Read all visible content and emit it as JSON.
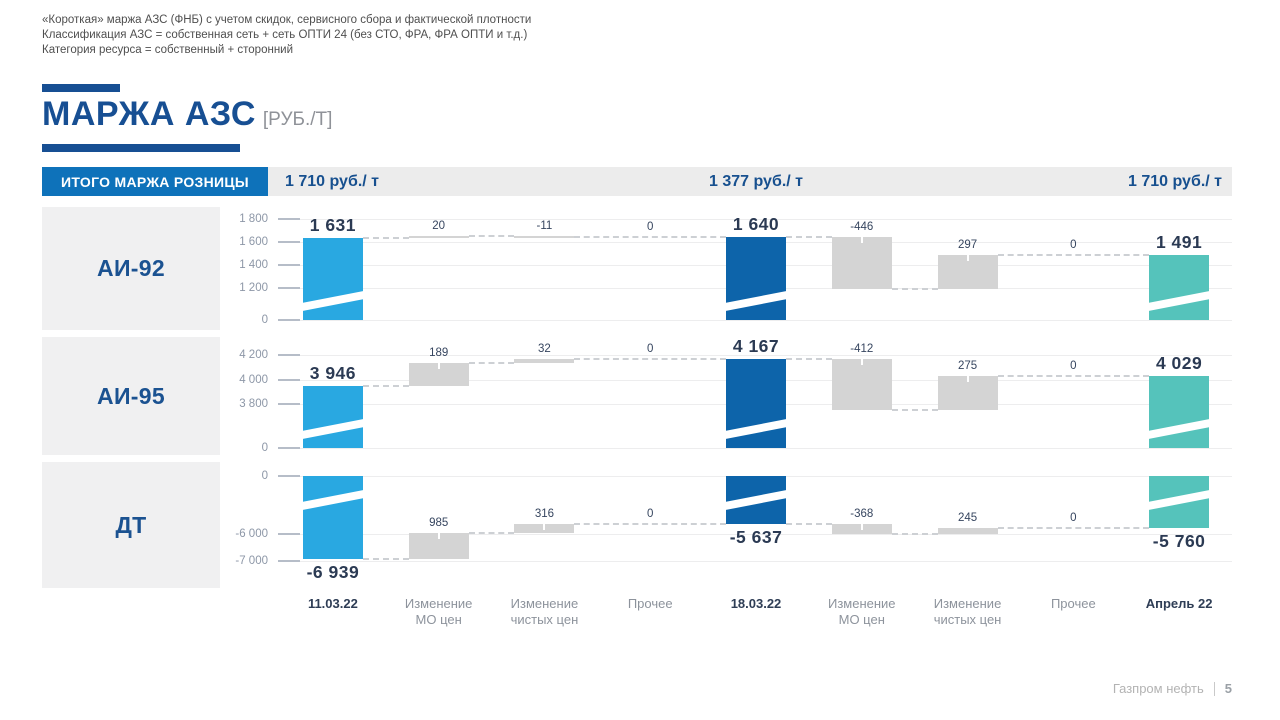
{
  "header": {
    "lines": [
      "«Короткая» маржа АЗС (ФНБ) с учетом скидок,  сервисного сбора и фактической плотности",
      "Классификация  АЗС = собственная сеть + сеть ОПТИ 24 (без СТО, ФРА, ФРА ОПТИ и т.д.)",
      "Категория ресурса = собственный + сторонний"
    ]
  },
  "title": {
    "text": "МАРЖА АЗС",
    "unit": "[РУБ./Т]"
  },
  "summary": {
    "label": "ИТОГО МАРЖА РОЗНИЦЫ",
    "values": [
      "1 710 руб./ т",
      "1 377 руб./ т",
      "1 710 руб./ т"
    ]
  },
  "footer": {
    "brand": "Газпром нефть",
    "page": "5"
  },
  "chart_data": {
    "type": "waterfall",
    "unit": "руб./т",
    "title": "МАРЖА АЗС [РУБ./Т]",
    "colors": {
      "start": "#29a8e1",
      "mid": "#0d64aa",
      "end": "#55c3bb",
      "delta": "#d4d4d4"
    },
    "columns": [
      {
        "axis": [
          "11.03.22"
        ],
        "kind": "total",
        "color": "start",
        "bold_axis": true
      },
      {
        "axis": [
          "Изменение",
          "МО цен"
        ],
        "kind": "delta",
        "bold_axis": false
      },
      {
        "axis": [
          "Изменение",
          "чистых цен"
        ],
        "kind": "delta",
        "bold_axis": false
      },
      {
        "axis": [
          "Прочее"
        ],
        "kind": "delta",
        "bold_axis": false
      },
      {
        "axis": [
          "18.03.22"
        ],
        "kind": "total",
        "color": "mid",
        "bold_axis": true
      },
      {
        "axis": [
          "Изменение",
          "МО цен"
        ],
        "kind": "delta",
        "bold_axis": false
      },
      {
        "axis": [
          "Изменение",
          "чистых цен"
        ],
        "kind": "delta",
        "bold_axis": false
      },
      {
        "axis": [
          "Прочее"
        ],
        "kind": "delta",
        "bold_axis": false
      },
      {
        "axis": [
          "Апрель 22"
        ],
        "kind": "total",
        "color": "end",
        "bold_axis": true
      }
    ],
    "rows": [
      {
        "name": "АИ-92",
        "values": [
          1631,
          20,
          -11,
          0,
          1640,
          -446,
          297,
          0,
          1491
        ],
        "value_labels": [
          "1 631",
          "20",
          "-11",
          "0",
          "1 640",
          "-446",
          "297",
          "0",
          "1 491"
        ],
        "ticks": [
          {
            "v": 1800,
            "label": "1 800"
          },
          {
            "v": 1600,
            "label": "1 600"
          },
          {
            "v": 1400,
            "label": "1 400"
          },
          {
            "v": 1200,
            "label": "1 200"
          },
          {
            "v": 0,
            "label": "0"
          }
        ]
      },
      {
        "name": "АИ-95",
        "values": [
          3946,
          189,
          32,
          0,
          4167,
          -412,
          275,
          0,
          4029
        ],
        "value_labels": [
          "3 946",
          "189",
          "32",
          "0",
          "4 167",
          "-412",
          "275",
          "0",
          "4 029"
        ],
        "ticks": [
          {
            "v": 4200,
            "label": "4 200"
          },
          {
            "v": 4000,
            "label": "4 000"
          },
          {
            "v": 3800,
            "label": "3 800"
          },
          {
            "v": 0,
            "label": "0"
          }
        ]
      },
      {
        "name": "ДТ",
        "values": [
          -6939,
          985,
          316,
          0,
          -5637,
          -368,
          245,
          0,
          -5760
        ],
        "value_labels": [
          "-6 939",
          "985",
          "316",
          "0",
          "-5 637",
          "-368",
          "245",
          "0",
          "-5 760"
        ],
        "ticks": [
          {
            "v": 0,
            "label": "0"
          },
          {
            "v": -6000,
            "label": "-6 000"
          },
          {
            "v": -7000,
            "label": "-7 000"
          }
        ]
      }
    ]
  }
}
